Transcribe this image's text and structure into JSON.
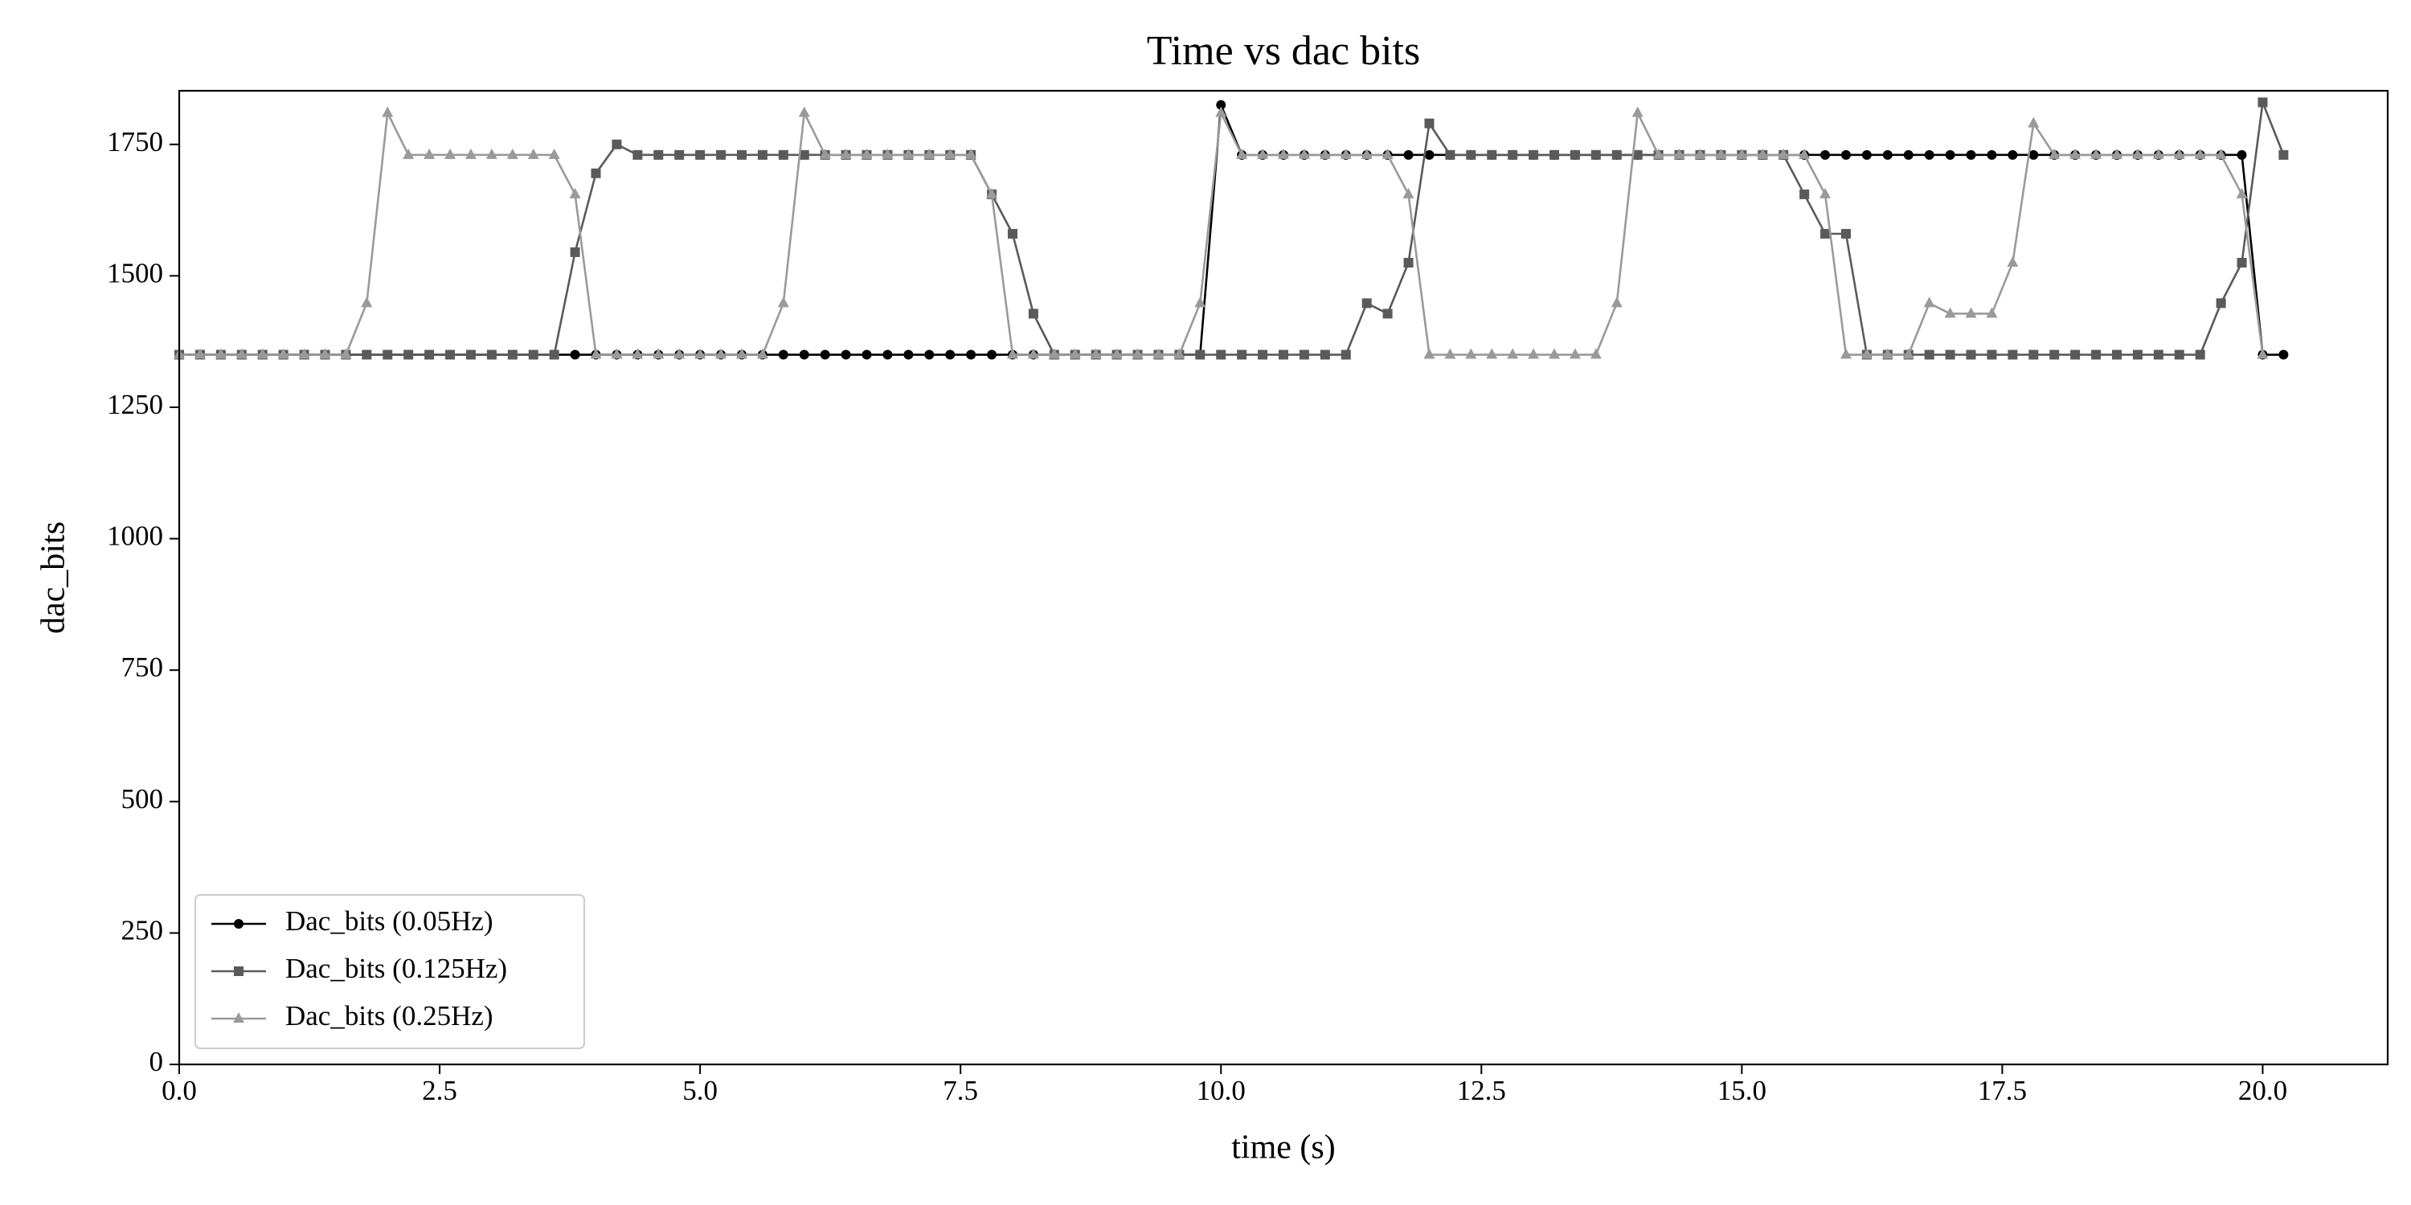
{
  "chart_data": {
    "type": "line",
    "title": "Time vs dac bits",
    "x_label": "time (s)",
    "y_label": "dac_bits",
    "x": [
      0,
      0.2,
      0.4,
      0.6,
      0.8,
      1,
      1.2,
      1.4,
      1.6,
      1.8,
      2,
      2.2,
      2.4,
      2.6,
      2.8,
      3,
      3.2,
      3.4,
      3.6,
      3.8,
      4,
      4.2,
      4.4,
      4.6,
      4.8,
      5,
      5.2,
      5.4,
      5.6,
      5.8,
      6,
      6.2,
      6.4,
      6.6,
      6.8,
      7,
      7.2,
      7.4,
      7.6,
      7.8,
      8,
      8.2,
      8.4,
      8.6,
      8.8,
      9,
      9.2,
      9.4,
      9.6,
      9.8,
      10,
      10.2,
      10.4,
      10.6,
      10.8,
      11,
      11.2,
      11.4,
      11.6,
      11.8,
      12,
      12.2,
      12.4,
      12.6,
      12.8,
      13,
      13.2,
      13.4,
      13.6,
      13.8,
      14,
      14.2,
      14.4,
      14.6,
      14.8,
      15,
      15.2,
      15.4,
      15.6,
      15.8,
      16,
      16.2,
      16.4,
      16.6,
      16.8,
      17,
      17.2,
      17.4,
      17.6,
      17.8,
      18,
      18.2,
      18.4,
      18.6,
      18.8,
      19,
      19.2,
      19.4,
      19.6,
      19.8,
      20,
      20.2
    ],
    "series": [
      {
        "name": "Dac_bits (0.05Hz)",
        "color": "#000000",
        "marker": "circle",
        "values": [
          1350,
          1350,
          1350,
          1350,
          1350,
          1350,
          1350,
          1350,
          1350,
          1350,
          1350,
          1350,
          1350,
          1350,
          1350,
          1350,
          1350,
          1350,
          1350,
          1350,
          1350,
          1350,
          1350,
          1350,
          1350,
          1350,
          1350,
          1350,
          1350,
          1350,
          1350,
          1350,
          1350,
          1350,
          1350,
          1350,
          1350,
          1350,
          1350,
          1350,
          1350,
          1350,
          1350,
          1350,
          1350,
          1350,
          1350,
          1350,
          1350,
          1350,
          1825,
          1730,
          1730,
          1730,
          1730,
          1730,
          1730,
          1730,
          1730,
          1730,
          1730,
          1730,
          1730,
          1730,
          1730,
          1730,
          1730,
          1730,
          1730,
          1730,
          1730,
          1730,
          1730,
          1730,
          1730,
          1730,
          1730,
          1730,
          1730,
          1730,
          1730,
          1730,
          1730,
          1730,
          1730,
          1730,
          1730,
          1730,
          1730,
          1730,
          1730,
          1730,
          1730,
          1730,
          1730,
          1730,
          1730,
          1730,
          1730,
          1730,
          1350,
          1350
        ]
      },
      {
        "name": "Dac_bits (0.125Hz)",
        "color": "#5a5a5a",
        "marker": "square",
        "values": [
          1350,
          1350,
          1350,
          1350,
          1350,
          1350,
          1350,
          1350,
          1350,
          1350,
          1350,
          1350,
          1350,
          1350,
          1350,
          1350,
          1350,
          1350,
          1350,
          1545,
          1695,
          1750,
          1730,
          1730,
          1730,
          1730,
          1730,
          1730,
          1730,
          1730,
          1730,
          1730,
          1730,
          1730,
          1730,
          1730,
          1730,
          1730,
          1730,
          1655,
          1580,
          1428,
          1350,
          1350,
          1350,
          1350,
          1350,
          1350,
          1350,
          1350,
          1350,
          1350,
          1350,
          1350,
          1350,
          1350,
          1350,
          1448,
          1428,
          1525,
          1790,
          1730,
          1730,
          1730,
          1730,
          1730,
          1730,
          1730,
          1730,
          1730,
          1730,
          1730,
          1730,
          1730,
          1730,
          1730,
          1730,
          1730,
          1655,
          1580,
          1580,
          1350,
          1350,
          1350,
          1350,
          1350,
          1350,
          1350,
          1350,
          1350,
          1350,
          1350,
          1350,
          1350,
          1350,
          1350,
          1350,
          1350,
          1448,
          1525,
          1830,
          1730
        ]
      },
      {
        "name": "Dac_bits (0.25Hz)",
        "color": "#9a9a9a",
        "marker": "triangle",
        "values": [
          1350,
          1350,
          1350,
          1350,
          1350,
          1350,
          1350,
          1350,
          1350,
          1448,
          1810,
          1730,
          1730,
          1730,
          1730,
          1730,
          1730,
          1730,
          1730,
          1655,
          1350,
          1350,
          1350,
          1350,
          1350,
          1350,
          1350,
          1350,
          1350,
          1448,
          1810,
          1730,
          1730,
          1730,
          1730,
          1730,
          1730,
          1730,
          1730,
          1655,
          1350,
          1350,
          1350,
          1350,
          1350,
          1350,
          1350,
          1350,
          1350,
          1448,
          1810,
          1730,
          1730,
          1730,
          1730,
          1730,
          1730,
          1730,
          1730,
          1655,
          1350,
          1350,
          1350,
          1350,
          1350,
          1350,
          1350,
          1350,
          1350,
          1448,
          1810,
          1730,
          1730,
          1730,
          1730,
          1730,
          1730,
          1730,
          1730,
          1655,
          1350,
          1350,
          1350,
          1350,
          1448,
          1428,
          1428,
          1428,
          1525,
          1790,
          1730,
          1730,
          1730,
          1730,
          1730,
          1730,
          1730,
          1730,
          1730,
          1655,
          1350,
          null
        ]
      }
    ],
    "xlim": [
      0,
      21.2
    ],
    "xticks": [
      {
        "value": 0,
        "label": "0.0"
      },
      2.5,
      {
        "value": 5,
        "label": "5.0"
      },
      7.5,
      {
        "value": 10,
        "label": "10.0"
      },
      12.5,
      {
        "value": 15,
        "label": "15.0"
      },
      17.5,
      {
        "value": 20,
        "label": "20.0"
      }
    ],
    "ylim": [
      0,
      1852
    ],
    "yticks": [
      0,
      250,
      500,
      750,
      1000,
      1250,
      1500,
      1750
    ],
    "grid": false,
    "legend": "lower left"
  }
}
